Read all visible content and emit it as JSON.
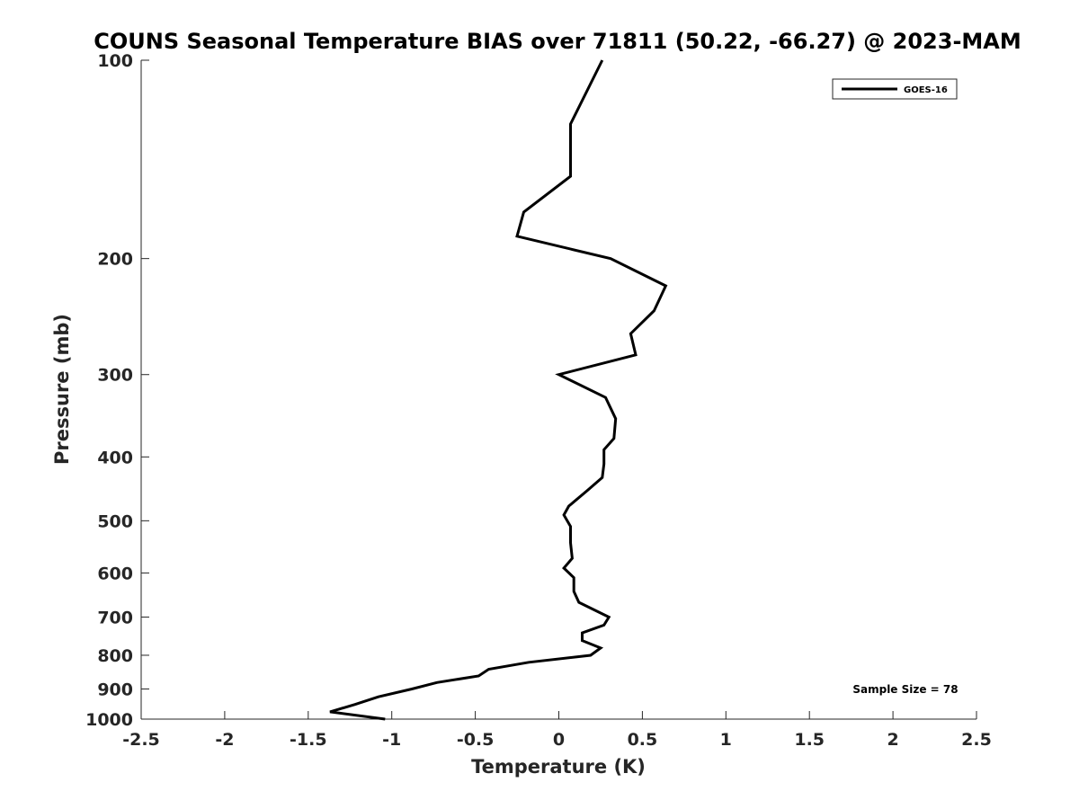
{
  "chart_data": {
    "type": "line",
    "title": "COUNS Seasonal Temperature BIAS over 71811 (50.22, -66.27) @ 2023-MAM",
    "xlabel": "Temperature (K)",
    "ylabel": "Pressure (mb)",
    "xlim": [
      -2.5,
      2.5
    ],
    "ylim": [
      100,
      1000
    ],
    "yscale": "log",
    "y_reversed": true,
    "grid": false,
    "legend_position": "top-right",
    "x_ticks": [
      -2.5,
      -2,
      -1.5,
      -1,
      -0.5,
      0,
      0.5,
      1,
      1.5,
      2,
      2.5
    ],
    "x_tick_labels": [
      "-2.5",
      "-2",
      "-1.5",
      "-1",
      "-0.5",
      "0",
      "0.5",
      "1",
      "1.5",
      "2",
      "2.5"
    ],
    "y_ticks": [
      100,
      200,
      300,
      400,
      500,
      600,
      700,
      800,
      900,
      1000
    ],
    "y_tick_labels": [
      "100",
      "200",
      "300",
      "400",
      "500",
      "600",
      "700",
      "800",
      "900",
      "1000"
    ],
    "series": [
      {
        "name": "GOES-16",
        "color": "#000000",
        "points": [
          {
            "x": 0.26,
            "y": 100
          },
          {
            "x": 0.07,
            "y": 125
          },
          {
            "x": 0.07,
            "y": 150
          },
          {
            "x": -0.21,
            "y": 170
          },
          {
            "x": -0.25,
            "y": 185
          },
          {
            "x": 0.31,
            "y": 200
          },
          {
            "x": 0.64,
            "y": 220
          },
          {
            "x": 0.57,
            "y": 240
          },
          {
            "x": 0.43,
            "y": 260
          },
          {
            "x": 0.46,
            "y": 280
          },
          {
            "x": 0.0,
            "y": 300
          },
          {
            "x": 0.28,
            "y": 325
          },
          {
            "x": 0.34,
            "y": 350
          },
          {
            "x": 0.33,
            "y": 375
          },
          {
            "x": 0.27,
            "y": 390
          },
          {
            "x": 0.27,
            "y": 410
          },
          {
            "x": 0.26,
            "y": 430
          },
          {
            "x": 0.17,
            "y": 450
          },
          {
            "x": 0.06,
            "y": 475
          },
          {
            "x": 0.03,
            "y": 490
          },
          {
            "x": 0.07,
            "y": 510
          },
          {
            "x": 0.07,
            "y": 540
          },
          {
            "x": 0.08,
            "y": 570
          },
          {
            "x": 0.03,
            "y": 590
          },
          {
            "x": 0.09,
            "y": 610
          },
          {
            "x": 0.09,
            "y": 640
          },
          {
            "x": 0.12,
            "y": 665
          },
          {
            "x": 0.3,
            "y": 700
          },
          {
            "x": 0.27,
            "y": 720
          },
          {
            "x": 0.14,
            "y": 740
          },
          {
            "x": 0.14,
            "y": 760
          },
          {
            "x": 0.25,
            "y": 780
          },
          {
            "x": 0.19,
            "y": 800
          },
          {
            "x": -0.18,
            "y": 820
          },
          {
            "x": -0.42,
            "y": 840
          },
          {
            "x": -0.48,
            "y": 860
          },
          {
            "x": -0.73,
            "y": 880
          },
          {
            "x": -0.88,
            "y": 900
          },
          {
            "x": -1.08,
            "y": 925
          },
          {
            "x": -1.22,
            "y": 950
          },
          {
            "x": -1.37,
            "y": 975
          },
          {
            "x": -1.04,
            "y": 1000
          }
        ]
      }
    ],
    "annotation": "Sample Size = 78"
  }
}
